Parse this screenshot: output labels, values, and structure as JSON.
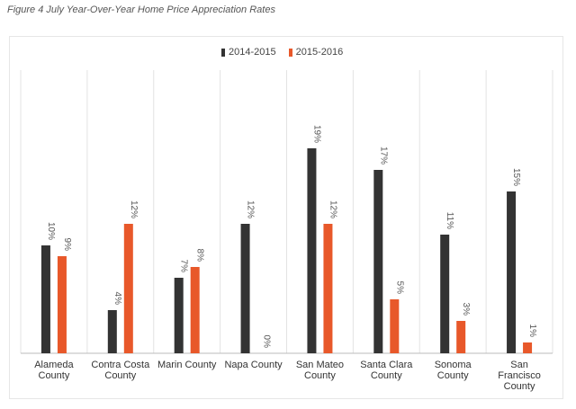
{
  "figure_title": "Figure 4 July Year-Over-Year Home Price Appreciation Rates",
  "colors": {
    "series_1": "#333333",
    "series_2": "#e8582a",
    "gridline": "#e3e3e3",
    "axis": "#bbbbbb"
  },
  "chart_data": {
    "type": "bar",
    "title": "",
    "xlabel": "",
    "ylabel": "",
    "ylim": [
      0,
      20
    ],
    "grid": "vertical separators between categories",
    "legend": "top-center",
    "categories": [
      [
        "Alameda",
        "County"
      ],
      [
        "Contra Costa",
        "County"
      ],
      [
        "Marin County"
      ],
      [
        "Napa County"
      ],
      [
        "San Mateo",
        "County"
      ],
      [
        "Santa Clara",
        "County"
      ],
      [
        "Sonoma",
        "County"
      ],
      [
        "San",
        "Francisco",
        "County"
      ]
    ],
    "series": [
      {
        "name": "2014-2015",
        "values": [
          10,
          4,
          7,
          12,
          19,
          17,
          11,
          15
        ],
        "labels": [
          "10%",
          "4%",
          "7%",
          "12%",
          "19%",
          "17%",
          "11%",
          "15%"
        ]
      },
      {
        "name": "2015-2016",
        "values": [
          9,
          12,
          8,
          0,
          12,
          5,
          3,
          1
        ],
        "labels": [
          "9%",
          "12%",
          "8%",
          "0%",
          "12%",
          "5%",
          "3%",
          "1%"
        ]
      }
    ]
  }
}
